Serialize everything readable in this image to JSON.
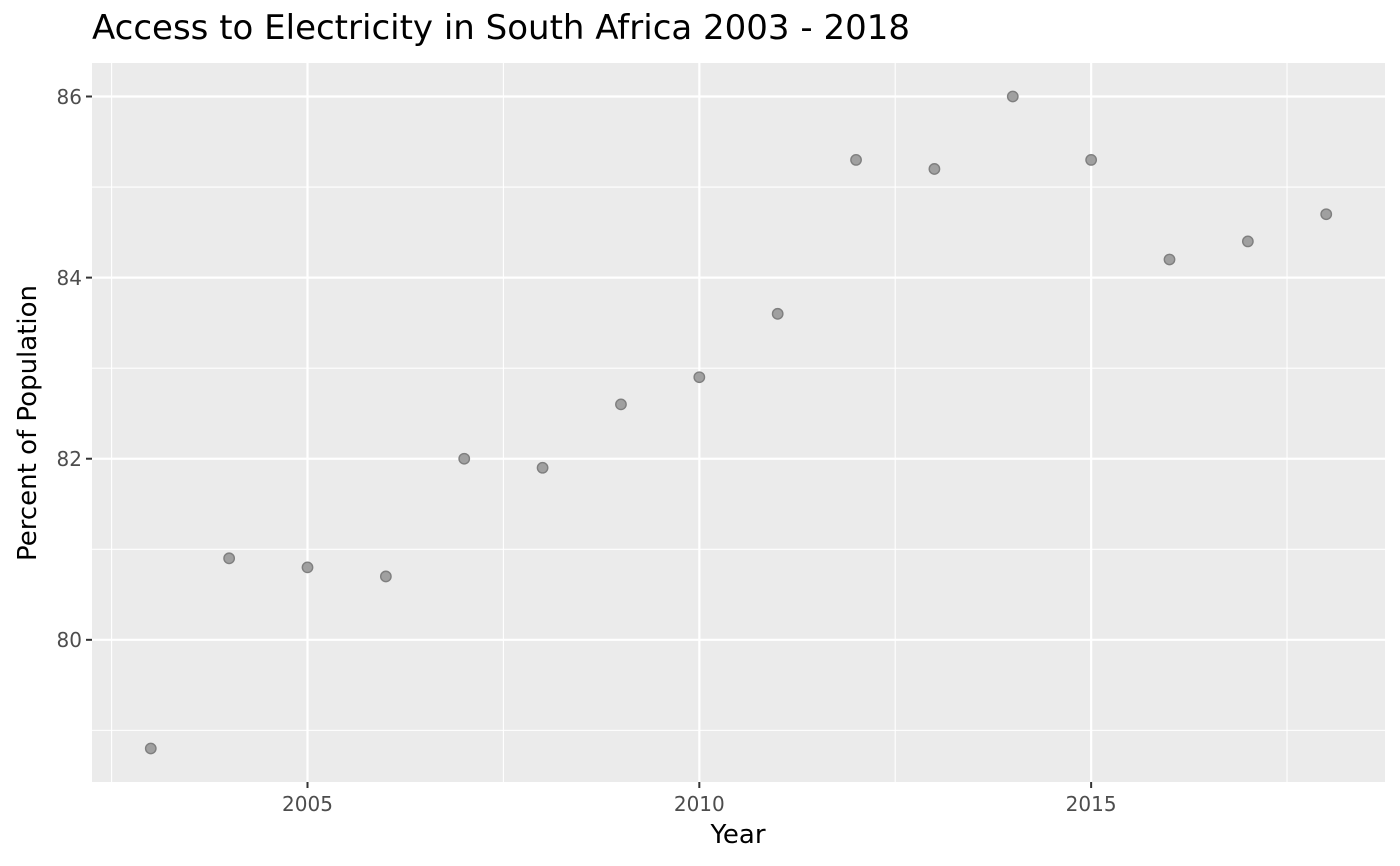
{
  "chart_data": {
    "type": "scatter",
    "title": "Access to Electricity in South Africa 2003 - 2018",
    "xlabel": "Year",
    "ylabel": "Percent of Population",
    "x": [
      2003,
      2004,
      2005,
      2006,
      2007,
      2008,
      2009,
      2010,
      2011,
      2012,
      2013,
      2014,
      2015,
      2016,
      2017,
      2018
    ],
    "y": [
      78.8,
      80.9,
      80.8,
      80.7,
      82.0,
      81.9,
      82.6,
      82.9,
      83.6,
      85.3,
      85.2,
      86.0,
      85.3,
      84.2,
      84.4,
      84.7
    ],
    "xlim": [
      2002.25,
      2018.75
    ],
    "ylim": [
      78.43,
      86.37
    ],
    "x_ticks": [
      "2005",
      "2010",
      "2015"
    ],
    "y_ticks": [
      "80",
      "82",
      "84",
      "86"
    ],
    "grid": true,
    "colors": {
      "panel_background": "#EBEBEB",
      "grid": "#FFFFFF",
      "point_fill": "#A0A0A0",
      "point_stroke": "#7F7F7F",
      "tick_text": "#4D4D4D"
    }
  }
}
